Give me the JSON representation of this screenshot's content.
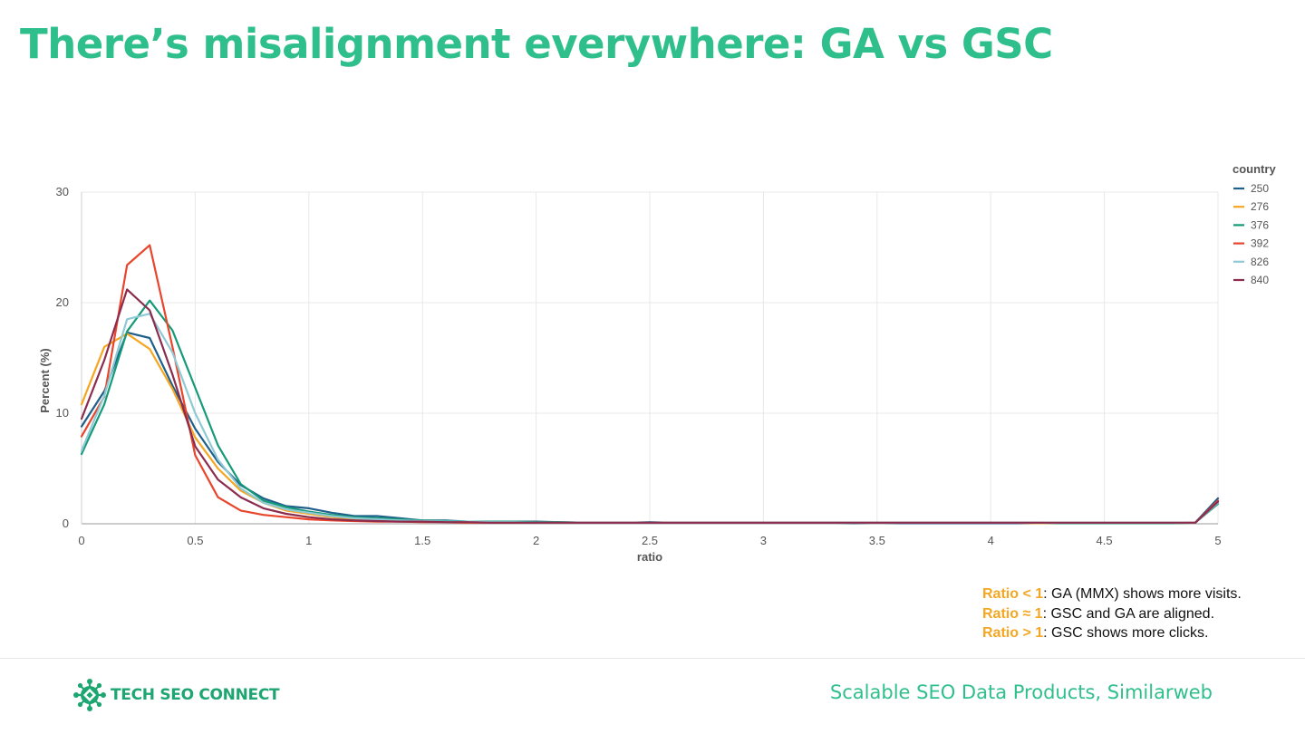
{
  "slide": {
    "title": "There’s misalignment everywhere: GA vs GSC",
    "footer_right": "Scalable SEO Data Products, Similarweb",
    "logo_text": "TECH SEO CONNECT"
  },
  "notes": [
    {
      "key": "Ratio < 1",
      "text": ": GA (MMX) shows more visits."
    },
    {
      "key": "Ratio ≈ 1",
      "text": ": GSC and GA are aligned."
    },
    {
      "key": "Ratio > 1",
      "text": ": GSC shows more clicks."
    }
  ],
  "colors": {
    "title": "#2fbf8c",
    "note_key": "#f5a623",
    "logo": "#1ea672"
  },
  "chart_data": {
    "type": "line",
    "xlabel": "ratio",
    "ylabel": "Percent (%)",
    "xlim": [
      0,
      5
    ],
    "ylim": [
      0,
      30
    ],
    "xticks": [
      0,
      0.5,
      1,
      1.5,
      2,
      2.5,
      3,
      3.5,
      4,
      4.5,
      5
    ],
    "yticks": [
      0,
      10,
      20,
      30
    ],
    "grid": true,
    "legend_title": "country",
    "legend_position": "top-right",
    "x": [
      0,
      0.1,
      0.2,
      0.3,
      0.4,
      0.5,
      0.6,
      0.7,
      0.8,
      0.9,
      1.0,
      1.1,
      1.2,
      1.3,
      1.4,
      1.5,
      1.6,
      1.7,
      1.8,
      1.9,
      2.0,
      2.1,
      2.2,
      2.3,
      2.4,
      2.5,
      2.6,
      2.7,
      2.8,
      2.9,
      3.0,
      3.1,
      3.2,
      3.3,
      3.4,
      3.5,
      3.6,
      3.7,
      3.8,
      3.9,
      4.0,
      4.1,
      4.2,
      4.3,
      4.4,
      4.5,
      4.6,
      4.7,
      4.8,
      4.9,
      5.0
    ],
    "series": [
      {
        "name": "250",
        "color": "#1f5f8b",
        "values": [
          8.8,
          12.0,
          17.3,
          16.8,
          12.5,
          8.6,
          5.6,
          3.5,
          2.3,
          1.6,
          1.4,
          1.0,
          0.7,
          0.7,
          0.5,
          0.3,
          0.3,
          0.2,
          0.2,
          0.2,
          0.2,
          0.15,
          0.1,
          0.1,
          0.1,
          0.15,
          0.1,
          0.1,
          0.1,
          0.1,
          0.1,
          0.1,
          0.1,
          0.1,
          0.05,
          0.1,
          0.05,
          0.05,
          0.05,
          0.05,
          0.05,
          0.05,
          0.05,
          0.05,
          0.05,
          0.05,
          0.05,
          0.05,
          0.05,
          0.1,
          2.3
        ]
      },
      {
        "name": "276",
        "color": "#f5a623",
        "values": [
          10.8,
          16.0,
          17.2,
          15.8,
          12.2,
          7.8,
          5.0,
          3.0,
          1.9,
          1.2,
          0.9,
          0.6,
          0.4,
          0.3,
          0.25,
          0.2,
          0.2,
          0.15,
          0.15,
          0.1,
          0.1,
          0.1,
          0.1,
          0.1,
          0.1,
          0.1,
          0.1,
          0.1,
          0.1,
          0.1,
          0.1,
          0.1,
          0.1,
          0.1,
          0.1,
          0.1,
          0.1,
          0.1,
          0.1,
          0.1,
          0.1,
          0.1,
          0.05,
          0.05,
          0.05,
          0.05,
          0.05,
          0.05,
          0.05,
          0.1,
          1.9
        ]
      },
      {
        "name": "376",
        "color": "#159a78",
        "values": [
          6.3,
          10.8,
          17.4,
          20.2,
          17.5,
          12.3,
          7.1,
          3.6,
          2.1,
          1.5,
          1.1,
          0.8,
          0.6,
          0.5,
          0.4,
          0.3,
          0.25,
          0.2,
          0.2,
          0.2,
          0.15,
          0.15,
          0.1,
          0.1,
          0.1,
          0.1,
          0.1,
          0.1,
          0.1,
          0.1,
          0.1,
          0.1,
          0.1,
          0.1,
          0.1,
          0.1,
          0.1,
          0.1,
          0.1,
          0.1,
          0.1,
          0.1,
          0.1,
          0.05,
          0.05,
          0.05,
          0.05,
          0.05,
          0.05,
          0.1,
          1.8
        ]
      },
      {
        "name": "392",
        "color": "#e8452c",
        "values": [
          7.9,
          11.5,
          23.4,
          25.2,
          16.0,
          6.2,
          2.4,
          1.2,
          0.8,
          0.6,
          0.4,
          0.3,
          0.25,
          0.2,
          0.2,
          0.15,
          0.15,
          0.1,
          0.1,
          0.1,
          0.1,
          0.1,
          0.1,
          0.1,
          0.1,
          0.1,
          0.1,
          0.1,
          0.1,
          0.1,
          0.1,
          0.1,
          0.1,
          0.1,
          0.1,
          0.1,
          0.1,
          0.1,
          0.1,
          0.1,
          0.1,
          0.1,
          0.1,
          0.1,
          0.1,
          0.1,
          0.1,
          0.1,
          0.1,
          0.1,
          2.1
        ]
      },
      {
        "name": "826",
        "color": "#8ec9d6",
        "values": [
          6.6,
          11.6,
          18.5,
          19.0,
          15.5,
          10.0,
          5.8,
          3.2,
          1.9,
          1.3,
          1.0,
          0.7,
          0.5,
          0.4,
          0.3,
          0.25,
          0.2,
          0.2,
          0.15,
          0.15,
          0.1,
          0.1,
          0.1,
          0.1,
          0.1,
          0.1,
          0.1,
          0.1,
          0.1,
          0.1,
          0.1,
          0.1,
          0.1,
          0.1,
          0.1,
          0.1,
          0.1,
          0.1,
          0.1,
          0.1,
          0.1,
          0.1,
          0.1,
          0.1,
          0.1,
          0.1,
          0.1,
          0.1,
          0.1,
          0.1,
          1.9
        ]
      },
      {
        "name": "840",
        "color": "#8b2c4e",
        "values": [
          9.5,
          14.8,
          21.2,
          19.3,
          13.5,
          7.0,
          4.0,
          2.4,
          1.4,
          0.9,
          0.6,
          0.4,
          0.3,
          0.25,
          0.2,
          0.2,
          0.15,
          0.15,
          0.1,
          0.1,
          0.1,
          0.1,
          0.1,
          0.1,
          0.1,
          0.1,
          0.1,
          0.1,
          0.1,
          0.1,
          0.1,
          0.1,
          0.1,
          0.1,
          0.1,
          0.1,
          0.1,
          0.1,
          0.1,
          0.1,
          0.1,
          0.1,
          0.1,
          0.1,
          0.1,
          0.1,
          0.1,
          0.1,
          0.1,
          0.1,
          2.0
        ]
      }
    ]
  }
}
